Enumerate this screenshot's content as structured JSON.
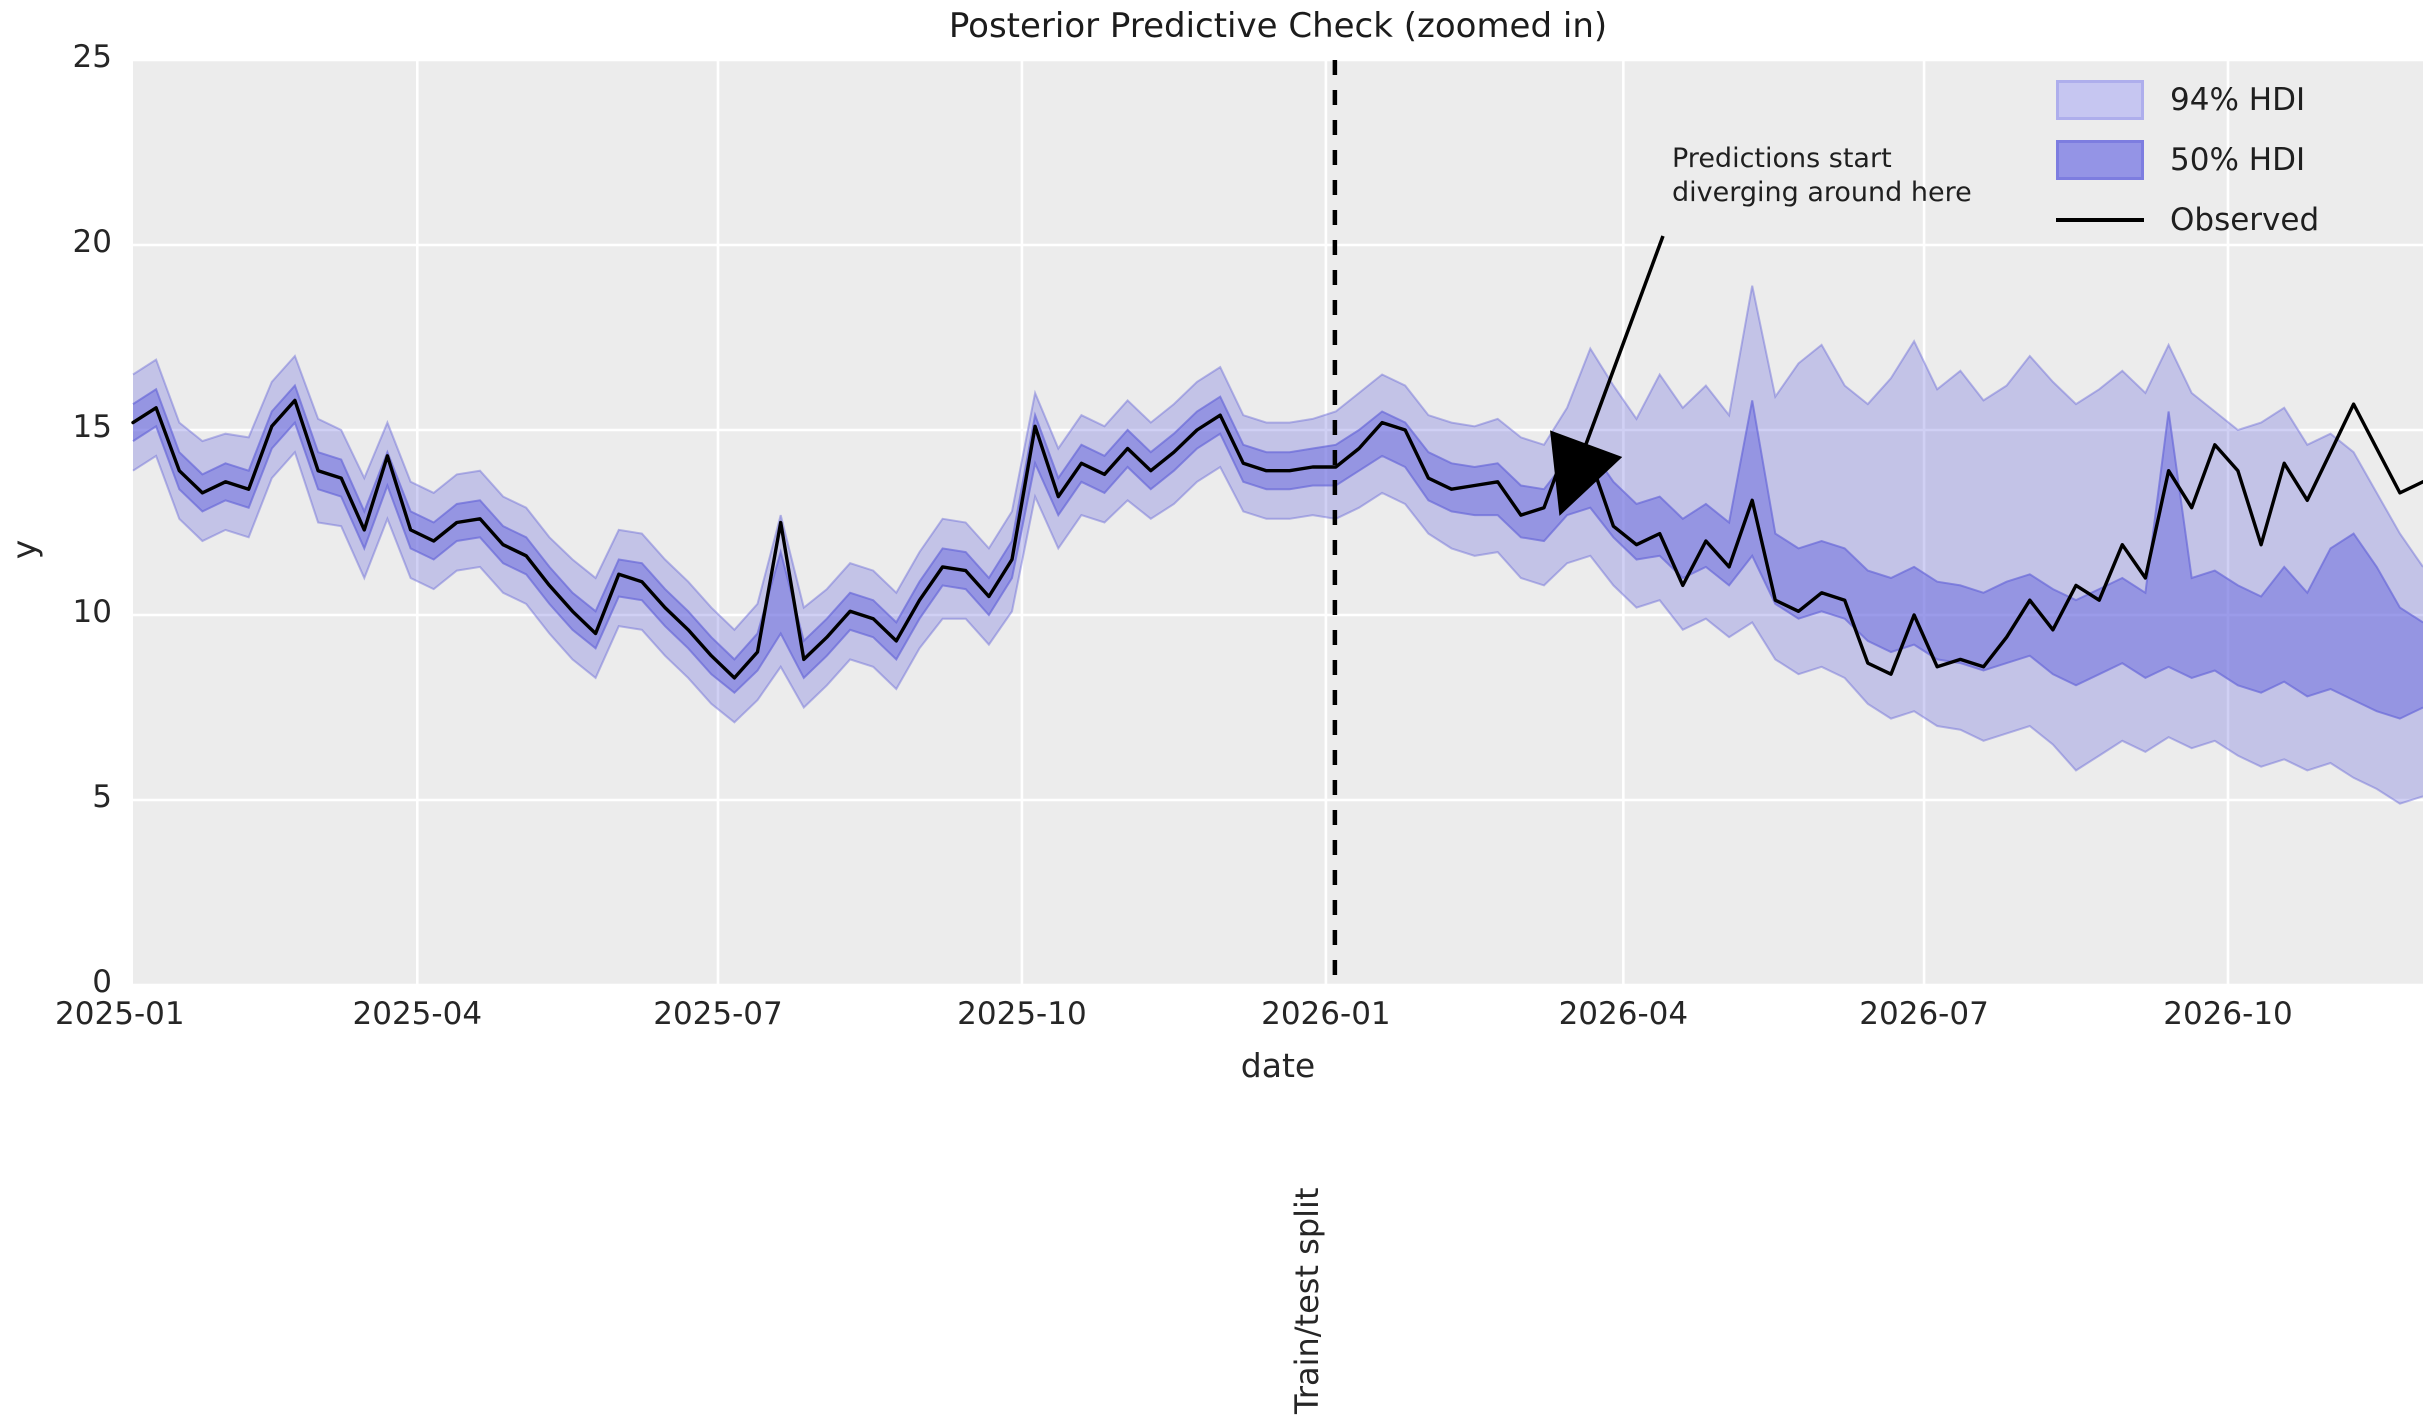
{
  "figure": {
    "title": "Posterior Predictive Check (zoomed in)",
    "xlabel": "date",
    "ylabel": "y",
    "split_label": "Train/test split"
  },
  "annotation": {
    "line1": "Predictions start",
    "line2": "diverging around here"
  },
  "legend": {
    "position": "upper right",
    "items": [
      {
        "label": "94% HDI",
        "swatch_fill": "#c6c6f1",
        "swatch_border": "#aeaeec"
      },
      {
        "label": "50% HDI",
        "swatch_fill": "#9494e6",
        "swatch_border": "#7d7de0"
      },
      {
        "label": "Observed",
        "line_color": "#000000"
      }
    ]
  },
  "colors": {
    "figure_bg": "#ffffff",
    "axes_bg": "#ececec",
    "gridline": "#ffffff",
    "hdi_band": "#6c6cde",
    "hdi94_fill_opacity": 0.32,
    "hdi50_fill_opacity": 0.52,
    "band_edge": "#6a6ad8",
    "observed_line": "#000000",
    "split_line": "#000000",
    "text": "#262626"
  },
  "chart_data": {
    "type": "line",
    "title": "Posterior Predictive Check (zoomed in)",
    "xlabel": "date",
    "ylabel": "y",
    "ylim": [
      0,
      25
    ],
    "y_ticks": [
      0,
      5,
      10,
      15,
      20,
      25
    ],
    "x_ticks": [
      {
        "label": "2025-01",
        "week_offset": -0.57
      },
      {
        "label": "2025-04",
        "week_offset": 12.29
      },
      {
        "label": "2025-07",
        "week_offset": 25.29
      },
      {
        "label": "2025-10",
        "week_offset": 38.43
      },
      {
        "label": "2026-01",
        "week_offset": 51.57
      },
      {
        "label": "2026-04",
        "week_offset": 64.43
      },
      {
        "label": "2026-07",
        "week_offset": 77.43
      },
      {
        "label": "2026-10",
        "week_offset": 90.57
      }
    ],
    "grid": true,
    "train_test_split_week_offset": 51.57,
    "annotation_target": {
      "week_offset": 62.3,
      "y": 13.75
    },
    "dates": [
      "2025-01-05",
      "2025-01-12",
      "2025-01-19",
      "2025-01-26",
      "2025-02-02",
      "2025-02-09",
      "2025-02-16",
      "2025-02-23",
      "2025-03-02",
      "2025-03-09",
      "2025-03-16",
      "2025-03-23",
      "2025-03-30",
      "2025-04-06",
      "2025-04-13",
      "2025-04-20",
      "2025-04-27",
      "2025-05-04",
      "2025-05-11",
      "2025-05-18",
      "2025-05-25",
      "2025-06-01",
      "2025-06-08",
      "2025-06-15",
      "2025-06-22",
      "2025-06-29",
      "2025-07-06",
      "2025-07-13",
      "2025-07-20",
      "2025-07-27",
      "2025-08-03",
      "2025-08-10",
      "2025-08-17",
      "2025-08-24",
      "2025-08-31",
      "2025-09-07",
      "2025-09-14",
      "2025-09-21",
      "2025-09-28",
      "2025-10-05",
      "2025-10-12",
      "2025-10-19",
      "2025-10-26",
      "2025-11-02",
      "2025-11-09",
      "2025-11-16",
      "2025-11-23",
      "2025-11-30",
      "2025-12-07",
      "2025-12-14",
      "2025-12-21",
      "2025-12-28",
      "2026-01-04",
      "2026-01-11",
      "2026-01-18",
      "2026-01-25",
      "2026-02-01",
      "2026-02-08",
      "2026-02-15",
      "2026-02-22",
      "2026-03-01",
      "2026-03-08",
      "2026-03-15",
      "2026-03-22",
      "2026-03-29",
      "2026-04-05",
      "2026-04-12",
      "2026-04-19",
      "2026-04-26",
      "2026-05-03",
      "2026-05-10",
      "2026-05-17",
      "2026-05-24",
      "2026-05-31",
      "2026-06-07",
      "2026-06-14",
      "2026-06-21",
      "2026-06-28",
      "2026-07-05",
      "2026-07-12",
      "2026-07-19",
      "2026-07-26",
      "2026-08-02",
      "2026-08-09",
      "2026-08-16",
      "2026-08-23",
      "2026-08-30",
      "2026-09-06",
      "2026-09-13",
      "2026-09-20",
      "2026-09-27",
      "2026-10-04",
      "2026-10-11",
      "2026-10-18",
      "2026-10-25",
      "2026-11-01",
      "2026-11-08",
      "2026-11-15",
      "2026-11-22",
      "2026-11-29"
    ],
    "series": [
      {
        "name": "Observed",
        "values": [
          15.2,
          15.6,
          13.9,
          13.3,
          13.6,
          13.4,
          15.1,
          15.8,
          13.9,
          13.7,
          12.3,
          14.3,
          12.3,
          12.0,
          12.5,
          12.6,
          11.9,
          11.6,
          10.8,
          10.1,
          9.5,
          11.1,
          10.9,
          10.2,
          9.6,
          8.9,
          8.3,
          9.0,
          12.5,
          8.8,
          9.4,
          10.1,
          9.9,
          9.3,
          10.4,
          11.3,
          11.2,
          10.5,
          11.5,
          15.1,
          13.2,
          14.1,
          13.8,
          14.5,
          13.9,
          14.4,
          15.0,
          15.4,
          14.1,
          13.9,
          13.9,
          14.0,
          14.0,
          14.5,
          15.2,
          15.0,
          13.7,
          13.4,
          13.5,
          13.6,
          12.7,
          12.9,
          14.6,
          14.2,
          12.4,
          11.9,
          12.2,
          10.8,
          12.0,
          11.3,
          13.1,
          10.4,
          10.1,
          10.6,
          10.4,
          8.7,
          8.4,
          10.0,
          8.6,
          8.8,
          8.6,
          9.4,
          10.4,
          9.6,
          10.8,
          10.4,
          11.9,
          11.0,
          13.9,
          12.9,
          14.6,
          13.9,
          11.9,
          14.1,
          13.1,
          14.4,
          15.7,
          14.5,
          13.3,
          13.6
        ]
      },
      {
        "name": "94% HDI upper",
        "values": [
          16.5,
          16.9,
          15.2,
          14.7,
          14.9,
          14.8,
          16.3,
          17.0,
          15.3,
          15.0,
          13.7,
          15.2,
          13.6,
          13.3,
          13.8,
          13.9,
          13.2,
          12.9,
          12.1,
          11.5,
          11.0,
          12.3,
          12.2,
          11.5,
          10.9,
          10.2,
          9.6,
          10.3,
          12.7,
          10.2,
          10.7,
          11.4,
          11.2,
          10.6,
          11.7,
          12.6,
          12.5,
          11.8,
          12.8,
          16.0,
          14.5,
          15.4,
          15.1,
          15.8,
          15.2,
          15.7,
          16.3,
          16.7,
          15.4,
          15.2,
          15.2,
          15.3,
          15.5,
          16.0,
          16.5,
          16.2,
          15.4,
          15.2,
          15.1,
          15.3,
          14.8,
          14.6,
          15.6,
          17.2,
          16.2,
          15.3,
          16.5,
          15.6,
          16.2,
          15.4,
          18.9,
          15.9,
          16.8,
          17.3,
          16.2,
          15.7,
          16.4,
          17.4,
          16.1,
          16.6,
          15.8,
          16.2,
          17.0,
          16.3,
          15.7,
          16.1,
          16.6,
          16.0,
          17.3,
          16.0,
          15.5,
          15.0,
          15.2,
          15.6,
          14.6,
          14.9,
          14.4,
          13.3,
          12.2,
          11.3
        ]
      },
      {
        "name": "94% HDI lower",
        "values": [
          13.9,
          14.3,
          12.6,
          12.0,
          12.3,
          12.1,
          13.7,
          14.4,
          12.5,
          12.4,
          11.0,
          12.6,
          11.0,
          10.7,
          11.2,
          11.3,
          10.6,
          10.3,
          9.5,
          8.8,
          8.3,
          9.7,
          9.6,
          8.9,
          8.3,
          7.6,
          7.1,
          7.7,
          8.6,
          7.5,
          8.1,
          8.8,
          8.6,
          8.0,
          9.1,
          9.9,
          9.9,
          9.2,
          10.1,
          13.2,
          11.8,
          12.7,
          12.5,
          13.1,
          12.6,
          13.0,
          13.6,
          14.0,
          12.8,
          12.6,
          12.6,
          12.7,
          12.6,
          12.9,
          13.3,
          13.0,
          12.2,
          11.8,
          11.6,
          11.7,
          11.0,
          10.8,
          11.4,
          11.6,
          10.8,
          10.2,
          10.4,
          9.6,
          9.9,
          9.4,
          9.8,
          8.8,
          8.4,
          8.6,
          8.3,
          7.6,
          7.2,
          7.4,
          7.0,
          6.9,
          6.6,
          6.8,
          7.0,
          6.5,
          5.8,
          6.2,
          6.6,
          6.3,
          6.7,
          6.4,
          6.6,
          6.2,
          5.9,
          6.1,
          5.8,
          6.0,
          5.6,
          5.3,
          4.9,
          5.1
        ]
      },
      {
        "name": "50% HDI upper",
        "values": [
          15.7,
          16.1,
          14.4,
          13.8,
          14.1,
          13.9,
          15.5,
          16.2,
          14.4,
          14.2,
          12.8,
          14.4,
          12.8,
          12.5,
          13.0,
          13.1,
          12.4,
          12.1,
          11.3,
          10.6,
          10.1,
          11.5,
          11.4,
          10.7,
          10.1,
          9.4,
          8.8,
          9.5,
          11.7,
          9.3,
          9.9,
          10.6,
          10.4,
          9.8,
          10.9,
          11.8,
          11.7,
          11.0,
          12.0,
          15.4,
          13.7,
          14.6,
          14.3,
          15.0,
          14.4,
          14.9,
          15.5,
          15.9,
          14.6,
          14.4,
          14.4,
          14.5,
          14.6,
          15.0,
          15.5,
          15.2,
          14.4,
          14.1,
          14.0,
          14.1,
          13.5,
          13.4,
          14.2,
          14.5,
          13.6,
          13.0,
          13.2,
          12.6,
          13.0,
          12.5,
          15.8,
          12.2,
          11.8,
          12.0,
          11.8,
          11.2,
          11.0,
          11.3,
          10.9,
          10.8,
          10.6,
          10.9,
          11.1,
          10.7,
          10.4,
          10.7,
          11.0,
          10.6,
          15.5,
          11.0,
          11.2,
          10.8,
          10.5,
          11.3,
          10.6,
          11.8,
          12.2,
          11.3,
          10.2,
          9.8
        ]
      },
      {
        "name": "50% HDI lower",
        "values": [
          14.7,
          15.1,
          13.4,
          12.8,
          13.1,
          12.9,
          14.5,
          15.2,
          13.4,
          13.2,
          11.8,
          13.5,
          11.8,
          11.5,
          12.0,
          12.1,
          11.4,
          11.1,
          10.3,
          9.6,
          9.1,
          10.5,
          10.4,
          9.7,
          9.1,
          8.4,
          7.9,
          8.5,
          9.5,
          8.3,
          8.9,
          9.6,
          9.4,
          8.8,
          9.9,
          10.8,
          10.7,
          10.0,
          11.0,
          14.1,
          12.7,
          13.6,
          13.3,
          14.0,
          13.4,
          13.9,
          14.5,
          14.9,
          13.6,
          13.4,
          13.4,
          13.5,
          13.5,
          13.9,
          14.3,
          14.0,
          13.1,
          12.8,
          12.7,
          12.7,
          12.1,
          12.0,
          12.7,
          12.9,
          12.1,
          11.5,
          11.6,
          11.0,
          11.3,
          10.8,
          11.6,
          10.3,
          9.9,
          10.1,
          9.9,
          9.3,
          9.0,
          9.2,
          8.8,
          8.7,
          8.5,
          8.7,
          8.9,
          8.4,
          8.1,
          8.4,
          8.7,
          8.3,
          8.6,
          8.3,
          8.5,
          8.1,
          7.9,
          8.2,
          7.8,
          8.0,
          7.7,
          7.4,
          7.2,
          7.5
        ]
      }
    ]
  }
}
